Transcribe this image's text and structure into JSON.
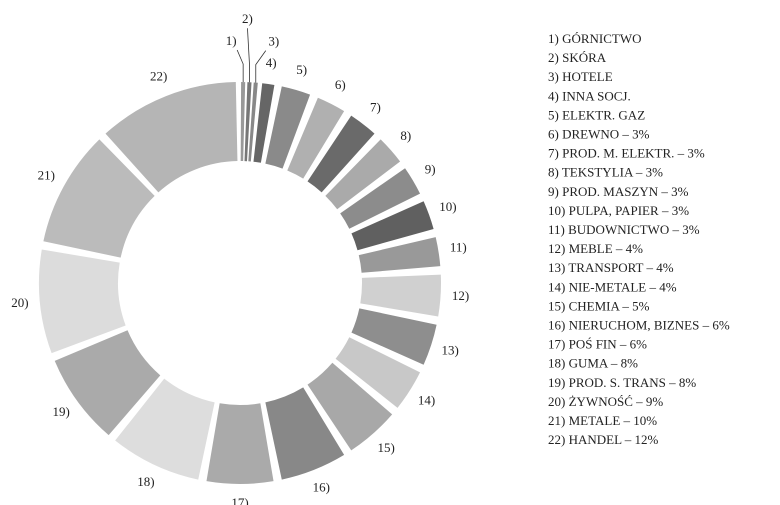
{
  "chart_data": {
    "type": "donut",
    "markers": [
      "1)",
      "2)",
      "3)",
      "4)",
      "5)",
      "6)",
      "7)",
      "8)",
      "9)",
      "10)",
      "11)",
      "12)",
      "13)",
      "14)",
      "15)",
      "16)",
      "17)",
      "18)",
      "19)",
      "20)",
      "21)",
      "22)"
    ],
    "categories": [
      "GÓRNICTWO",
      "SKÓRA",
      "HOTELE",
      "INNA SOCJ.",
      "ELEKTR. GAZ",
      "DREWNO",
      "PROD. M. ELEKTR.",
      "TEKSTYLIA",
      "PROD. MASZYN",
      "PULPA, PAPIER",
      "BUDOWNICTWO",
      "MEBLE",
      "TRANSPORT",
      "NIE-METALE",
      "CHEMIA",
      "NIERUCHOM, BIZNES",
      "POŚ FIN",
      "GUMA",
      "PROD. S. TRANS",
      "ŻYWNOŚĆ",
      "METALE",
      "HANDEL"
    ],
    "values": [
      0.5,
      0.5,
      0.5,
      1.5,
      3,
      3,
      3,
      3,
      3,
      3,
      3,
      4,
      4,
      4,
      5,
      6,
      6,
      8,
      8,
      9,
      10,
      12
    ],
    "separator": "–",
    "value_labels": [
      null,
      null,
      null,
      null,
      null,
      "3%",
      "3%",
      "3%",
      "3%",
      "3%",
      "3%",
      "4%",
      "4%",
      "4%",
      "5%",
      "6%",
      "6%",
      "8%",
      "8%",
      "9%",
      "10%",
      "12%"
    ],
    "colors": [
      "#999999",
      "#777777",
      "#888888",
      "#666666",
      "#8a8a8a",
      "#b0b0b0",
      "#6a6a6a",
      "#aaaaaa",
      "#8c8c8c",
      "#606060",
      "#999999",
      "#d0d0d0",
      "#8e8e8e",
      "#c8c8c8",
      "#a8a8a8",
      "#888888",
      "#aaaaaa",
      "#dddddd",
      "#aaaaaa",
      "#dcdcdc",
      "#bbbbbb",
      "#b5b5b5"
    ]
  }
}
